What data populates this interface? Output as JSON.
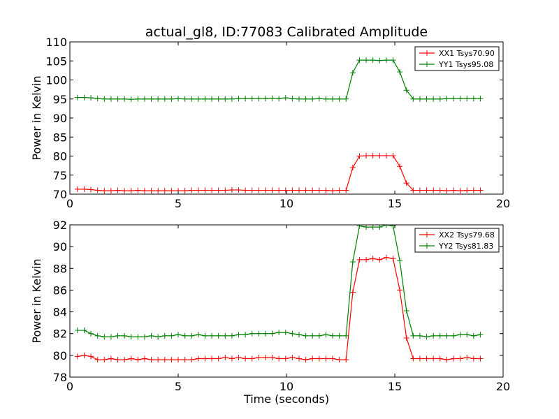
{
  "chart_data": [
    {
      "type": "line",
      "title": "actual_gl8, ID:77083 Calibrated Amplitude",
      "xlabel": "",
      "ylabel": "Power in Kelvin",
      "xlim": [
        0,
        20
      ],
      "ylim": [
        70,
        110
      ],
      "xticks": [
        "0",
        "5",
        "10",
        "15",
        "20"
      ],
      "yticks": [
        "70",
        "75",
        "80",
        "85",
        "90",
        "95",
        "100",
        "105",
        "110"
      ],
      "legend_position": "top-right",
      "x": [
        0.35,
        0.66,
        0.97,
        1.28,
        1.59,
        1.9,
        2.21,
        2.52,
        2.83,
        3.14,
        3.45,
        3.76,
        4.07,
        4.38,
        4.69,
        5.0,
        5.31,
        5.62,
        5.93,
        6.24,
        6.55,
        6.86,
        7.17,
        7.48,
        7.79,
        8.1,
        8.41,
        8.72,
        9.03,
        9.34,
        9.65,
        9.96,
        10.27,
        10.58,
        10.89,
        11.2,
        11.51,
        11.82,
        12.13,
        12.44,
        12.75,
        13.06,
        13.37,
        13.68,
        13.99,
        14.3,
        14.61,
        14.92,
        15.23,
        15.54,
        15.85,
        16.16,
        16.47,
        16.78,
        17.09,
        17.4,
        17.71,
        18.02,
        18.33,
        18.64,
        18.95
      ],
      "series": [
        {
          "name": "XX1 Tsys70.90",
          "color": "#ff0000",
          "values": [
            71.3,
            71.3,
            71.2,
            71.0,
            70.9,
            70.9,
            71.0,
            70.9,
            70.9,
            71.0,
            70.9,
            70.9,
            70.9,
            70.9,
            70.9,
            70.9,
            70.9,
            71.0,
            71.0,
            71.0,
            71.0,
            71.0,
            71.0,
            71.1,
            71.1,
            71.0,
            71.0,
            71.0,
            71.0,
            71.0,
            71.0,
            71.0,
            71.0,
            71.0,
            71.0,
            71.0,
            71.0,
            71.0,
            70.9,
            71.0,
            71.0,
            77.0,
            80.0,
            80.1,
            80.1,
            80.1,
            80.1,
            80.1,
            77.3,
            72.9,
            71.0,
            71.0,
            71.0,
            71.0,
            71.0,
            70.9,
            71.0,
            70.9,
            71.0,
            71.0,
            71.0
          ]
        },
        {
          "name": "YY1 Tsys95.08",
          "color": "#008000",
          "values": [
            95.4,
            95.4,
            95.3,
            95.1,
            95.0,
            95.0,
            95.0,
            95.0,
            94.9,
            95.0,
            95.0,
            95.0,
            95.0,
            95.0,
            95.0,
            95.1,
            95.0,
            95.0,
            95.0,
            95.0,
            95.0,
            95.0,
            95.0,
            95.0,
            95.1,
            95.1,
            95.1,
            95.1,
            95.1,
            95.2,
            95.1,
            95.3,
            95.1,
            95.0,
            95.0,
            95.0,
            95.1,
            95.0,
            95.0,
            95.0,
            95.0,
            101.9,
            105.2,
            105.2,
            105.2,
            105.1,
            105.2,
            105.2,
            102.1,
            97.3,
            95.0,
            95.0,
            95.0,
            95.0,
            95.0,
            95.1,
            95.1,
            95.1,
            95.1,
            95.1,
            95.1
          ]
        }
      ]
    },
    {
      "type": "line",
      "title": "",
      "xlabel": "Time (seconds)",
      "ylabel": "Power in Kelvin",
      "xlim": [
        0,
        20
      ],
      "ylim": [
        78,
        92
      ],
      "xticks": [
        "0",
        "5",
        "10",
        "15",
        "20"
      ],
      "yticks": [
        "78",
        "80",
        "82",
        "84",
        "86",
        "88",
        "90",
        "92"
      ],
      "legend_position": "top-right",
      "x": [
        0.35,
        0.66,
        0.97,
        1.28,
        1.59,
        1.9,
        2.21,
        2.52,
        2.83,
        3.14,
        3.45,
        3.76,
        4.07,
        4.38,
        4.69,
        5.0,
        5.31,
        5.62,
        5.93,
        6.24,
        6.55,
        6.86,
        7.17,
        7.48,
        7.79,
        8.1,
        8.41,
        8.72,
        9.03,
        9.34,
        9.65,
        9.96,
        10.27,
        10.58,
        10.89,
        11.2,
        11.51,
        11.82,
        12.13,
        12.44,
        12.75,
        13.06,
        13.37,
        13.68,
        13.99,
        14.3,
        14.61,
        14.92,
        15.23,
        15.54,
        15.85,
        16.16,
        16.47,
        16.78,
        17.09,
        17.4,
        17.71,
        18.02,
        18.33,
        18.64,
        18.95
      ],
      "series": [
        {
          "name": "XX2 Tsys79.68",
          "color": "#ff0000",
          "values": [
            79.9,
            80.0,
            79.9,
            79.6,
            79.6,
            79.7,
            79.6,
            79.6,
            79.7,
            79.6,
            79.7,
            79.6,
            79.6,
            79.6,
            79.6,
            79.6,
            79.6,
            79.6,
            79.7,
            79.7,
            79.7,
            79.7,
            79.8,
            79.7,
            79.8,
            79.7,
            79.7,
            79.8,
            79.8,
            79.8,
            79.7,
            79.7,
            79.8,
            79.7,
            79.6,
            79.7,
            79.7,
            79.7,
            79.7,
            79.6,
            79.6,
            85.8,
            88.8,
            88.8,
            88.9,
            88.8,
            89.0,
            88.9,
            86.0,
            81.6,
            79.7,
            79.7,
            79.7,
            79.7,
            79.7,
            79.6,
            79.7,
            79.7,
            79.8,
            79.7,
            79.7
          ]
        },
        {
          "name": "YY2 Tsys81.83",
          "color": "#008000",
          "values": [
            82.3,
            82.3,
            82.0,
            81.8,
            81.7,
            81.7,
            81.8,
            81.8,
            81.7,
            81.7,
            81.7,
            81.8,
            81.7,
            81.8,
            81.8,
            81.9,
            81.8,
            81.8,
            81.9,
            81.8,
            81.8,
            81.8,
            81.8,
            81.8,
            81.9,
            81.9,
            82.0,
            82.0,
            82.0,
            82.0,
            82.1,
            82.1,
            82.0,
            81.9,
            81.8,
            81.8,
            81.8,
            81.9,
            81.8,
            81.8,
            81.8,
            88.6,
            91.9,
            91.8,
            91.8,
            91.8,
            92.0,
            91.9,
            88.7,
            84.1,
            81.8,
            81.8,
            81.7,
            81.8,
            81.8,
            81.8,
            81.8,
            81.9,
            81.9,
            81.8,
            81.9
          ]
        }
      ]
    }
  ]
}
